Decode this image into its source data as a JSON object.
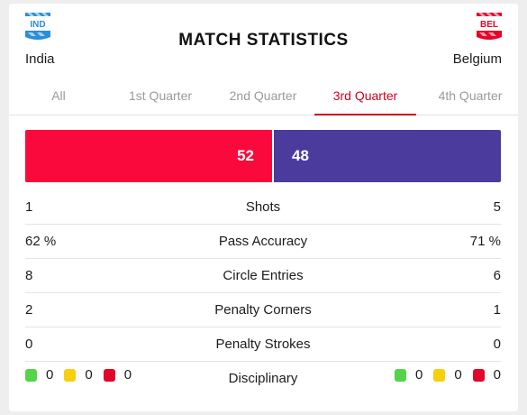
{
  "header": {
    "title": "MATCH STATISTICS",
    "home": {
      "code": "IND",
      "name": "India",
      "color": "#2a8fd6"
    },
    "away": {
      "code": "BEL",
      "name": "Belgium",
      "color": "#e2062a"
    }
  },
  "tabs": [
    {
      "label": "All"
    },
    {
      "label": "1st Quarter"
    },
    {
      "label": "2nd Quarter"
    },
    {
      "label": "3rd Quarter",
      "active": true
    },
    {
      "label": "4th Quarter"
    }
  ],
  "possession": {
    "home": 52,
    "away": 48,
    "home_color": "#fa0a3c",
    "away_color": "#4b3b9c"
  },
  "stats": [
    {
      "label": "Shots",
      "home": "1",
      "away": "5"
    },
    {
      "label": "Pass Accuracy",
      "home": "62 %",
      "away": "71 %"
    },
    {
      "label": "Circle Entries",
      "home": "8",
      "away": "6"
    },
    {
      "label": "Penalty Corners",
      "home": "2",
      "away": "1"
    },
    {
      "label": "Penalty Strokes",
      "home": "0",
      "away": "0"
    }
  ],
  "disciplinary": {
    "label": "Disciplinary",
    "home": {
      "green": "0",
      "yellow": "0",
      "red": "0"
    },
    "away": {
      "green": "0",
      "yellow": "0",
      "red": "0"
    }
  }
}
